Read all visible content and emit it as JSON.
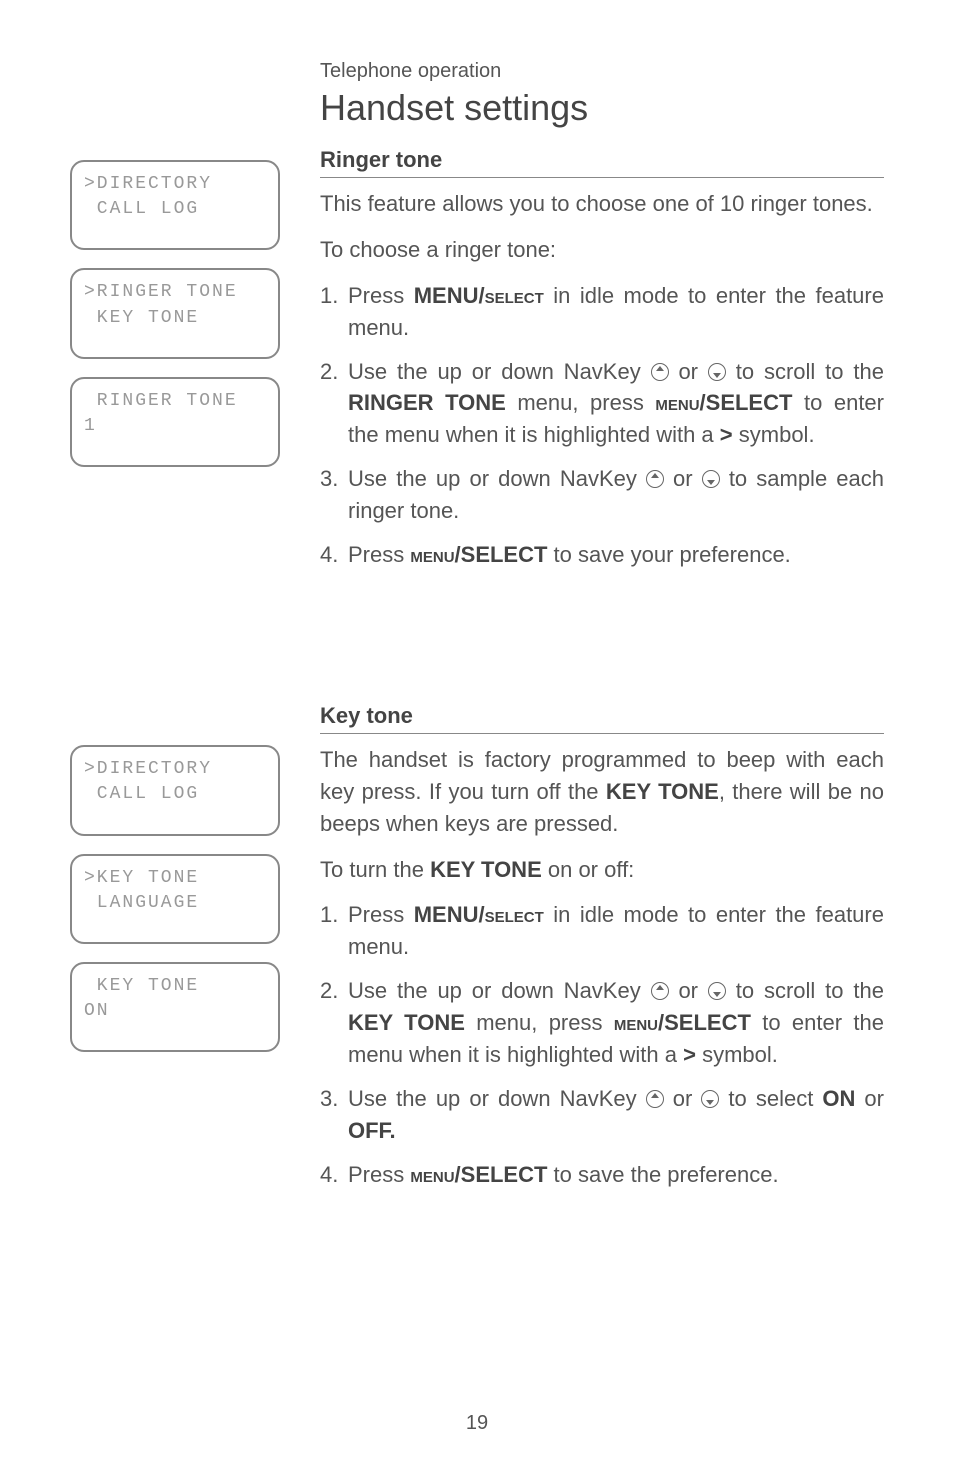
{
  "section_label": "Telephone operation",
  "page_title": "Handset settings",
  "page_number": "19",
  "lcd_screens_top": [
    {
      "line1": ">DIRECTORY",
      "line2": " CALL LOG"
    },
    {
      "line1": ">RINGER TONE",
      "line2": " KEY TONE"
    },
    {
      "line1": " RINGER TONE",
      "line2": "1"
    }
  ],
  "lcd_screens_bottom": [
    {
      "line1": ">DIRECTORY",
      "line2": " CALL LOG"
    },
    {
      "line1": ">KEY TONE",
      "line2": " LANGUAGE"
    },
    {
      "line1": " KEY TONE",
      "line2": "ON"
    }
  ],
  "ringer": {
    "heading": "Ringer tone",
    "intro": "This feature allows you to choose one of 10 ringer tones.",
    "lead": "To choose a ringer tone:",
    "step1_a": "Press ",
    "step1_menu": "MENU/",
    "step1_select": "select",
    "step1_b": " in idle mode to enter the feature menu.",
    "step2_a": "Use the up or down NavKey ",
    "step2_b": " or ",
    "step2_c": " to scroll to the ",
    "step2_ringer": "RINGER TONE",
    "step2_d": " menu, press ",
    "step2_menu2": "menu",
    "step2_select2": "/SELECT",
    "step2_e": " to enter the menu when it is highlighted with a ",
    "step2_gt": ">",
    "step2_f": " symbol.",
    "step3_a": "Use the up or down NavKey ",
    "step3_b": " or ",
    "step3_c": " to sample each ringer tone.",
    "step4_a": "Press ",
    "step4_menu": "menu",
    "step4_select": "/SELECT",
    "step4_b": " to save your preference."
  },
  "keytone": {
    "heading": "Key tone",
    "intro_a": "The handset is factory programmed to beep with each key press. If you turn off the ",
    "intro_key": "KEY TONE",
    "intro_b": ", there will be no beeps when keys are pressed.",
    "lead_a": "To turn the ",
    "lead_key": "KEY TONE",
    "lead_b": " on or off:",
    "step1_a": "Press ",
    "step1_menu": "MENU/",
    "step1_select": "select",
    "step1_b": " in idle mode to enter the feature menu.",
    "step2_a": "Use the up or down NavKey ",
    "step2_b": " or ",
    "step2_c": " to scroll to the ",
    "step2_key": "KEY TONE",
    "step2_d": " menu, press ",
    "step2_menu2": "menu",
    "step2_select2": "/SELECT",
    "step2_e": " to enter the menu when it is highlighted with a ",
    "step2_gt": ">",
    "step2_f": " symbol.",
    "step3_a": "Use the up or down NavKey ",
    "step3_b": " or ",
    "step3_c": " to select ",
    "step3_on": "ON",
    "step3_or": " or ",
    "step3_off": "OFF.",
    "step4_a": "Press ",
    "step4_menu": "menu",
    "step4_select": "/SELECT",
    "step4_b": " to save the preference."
  }
}
